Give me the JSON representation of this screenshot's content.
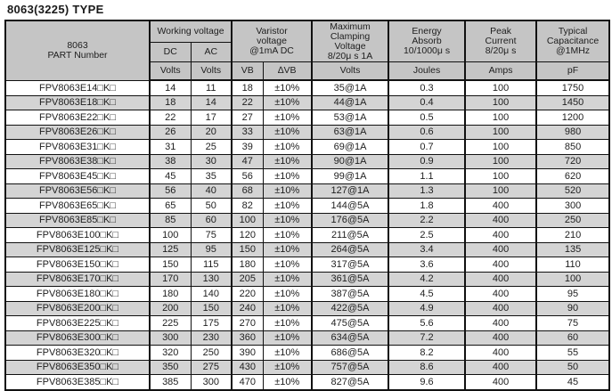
{
  "title": "8063(3225) TYPE",
  "colors": {
    "header_bg": "#c5c5c5",
    "alt_row_bg": "#d4d4d4",
    "row_bg": "#ffffff",
    "border": "#111111",
    "text": "#1e1e1e"
  },
  "table": {
    "header": {
      "part_number": "8063\nPART Number",
      "working_voltage": "Working voltage",
      "dc": "DC",
      "ac": "AC",
      "varistor_voltage": "Varistor\nvoltage\n@1mA DC",
      "max_clamping": "Maximum\nClamping\nVoltage\n8/20μ s 1A",
      "energy": "Energy\nAbsorb\n10/1000μ s",
      "peak_current": "Peak\nCurrent\n8/20μ s",
      "capacitance": "Typical\nCapacitance\n@1MHz",
      "units": [
        "Volts",
        "Volts",
        "VB",
        "∆VB",
        "Volts",
        "Joules",
        "Amps",
        "pF"
      ]
    },
    "rows": [
      [
        "FPV8063E14□K□",
        "14",
        "11",
        "18",
        "±10%",
        "35@1A",
        "0.3",
        "100",
        "1750"
      ],
      [
        "FPV8063E18□K□",
        "18",
        "14",
        "22",
        "±10%",
        "44@1A",
        "0.4",
        "100",
        "1450"
      ],
      [
        "FPV8063E22□K□",
        "22",
        "17",
        "27",
        "±10%",
        "53@1A",
        "0.5",
        "100",
        "1200"
      ],
      [
        "FPV8063E26□K□",
        "26",
        "20",
        "33",
        "±10%",
        "63@1A",
        "0.6",
        "100",
        "980"
      ],
      [
        "FPV8063E31□K□",
        "31",
        "25",
        "39",
        "±10%",
        "69@1A",
        "0.7",
        "100",
        "850"
      ],
      [
        "FPV8063E38□K□",
        "38",
        "30",
        "47",
        "±10%",
        "90@1A",
        "0.9",
        "100",
        "720"
      ],
      [
        "FPV8063E45□K□",
        "45",
        "35",
        "56",
        "±10%",
        "99@1A",
        "1.1",
        "100",
        "620"
      ],
      [
        "FPV8063E56□K□",
        "56",
        "40",
        "68",
        "±10%",
        "127@1A",
        "1.3",
        "100",
        "520"
      ],
      [
        "FPV8063E65□K□",
        "65",
        "50",
        "82",
        "±10%",
        "144@5A",
        "1.8",
        "400",
        "300"
      ],
      [
        "FPV8063E85□K□",
        "85",
        "60",
        "100",
        "±10%",
        "176@5A",
        "2.2",
        "400",
        "250"
      ],
      [
        "FPV8063E100□K□",
        "100",
        "75",
        "120",
        "±10%",
        "211@5A",
        "2.5",
        "400",
        "210"
      ],
      [
        "FPV8063E125□K□",
        "125",
        "95",
        "150",
        "±10%",
        "264@5A",
        "3.4",
        "400",
        "135"
      ],
      [
        "FPV8063E150□K□",
        "150",
        "115",
        "180",
        "±10%",
        "317@5A",
        "3.6",
        "400",
        "110"
      ],
      [
        "FPV8063E170□K□",
        "170",
        "130",
        "205",
        "±10%",
        "361@5A",
        "4.2",
        "400",
        "100"
      ],
      [
        "FPV8063E180□K□",
        "180",
        "140",
        "220",
        "±10%",
        "387@5A",
        "4.5",
        "400",
        "95"
      ],
      [
        "FPV8063E200□K□",
        "200",
        "150",
        "240",
        "±10%",
        "422@5A",
        "4.9",
        "400",
        "90"
      ],
      [
        "FPV8063E225□K□",
        "225",
        "175",
        "270",
        "±10%",
        "475@5A",
        "5.6",
        "400",
        "75"
      ],
      [
        "FPV8063E300□K□",
        "300",
        "230",
        "360",
        "±10%",
        "634@5A",
        "7.2",
        "400",
        "60"
      ],
      [
        "FPV8063E320□K□",
        "320",
        "250",
        "390",
        "±10%",
        "686@5A",
        "8.2",
        "400",
        "55"
      ],
      [
        "FPV8063E350□K□",
        "350",
        "275",
        "430",
        "±10%",
        "757@5A",
        "8.6",
        "400",
        "50"
      ],
      [
        "FPV8063E385□K□",
        "385",
        "300",
        "470",
        "±10%",
        "827@5A",
        "9.6",
        "400",
        "45"
      ]
    ]
  }
}
